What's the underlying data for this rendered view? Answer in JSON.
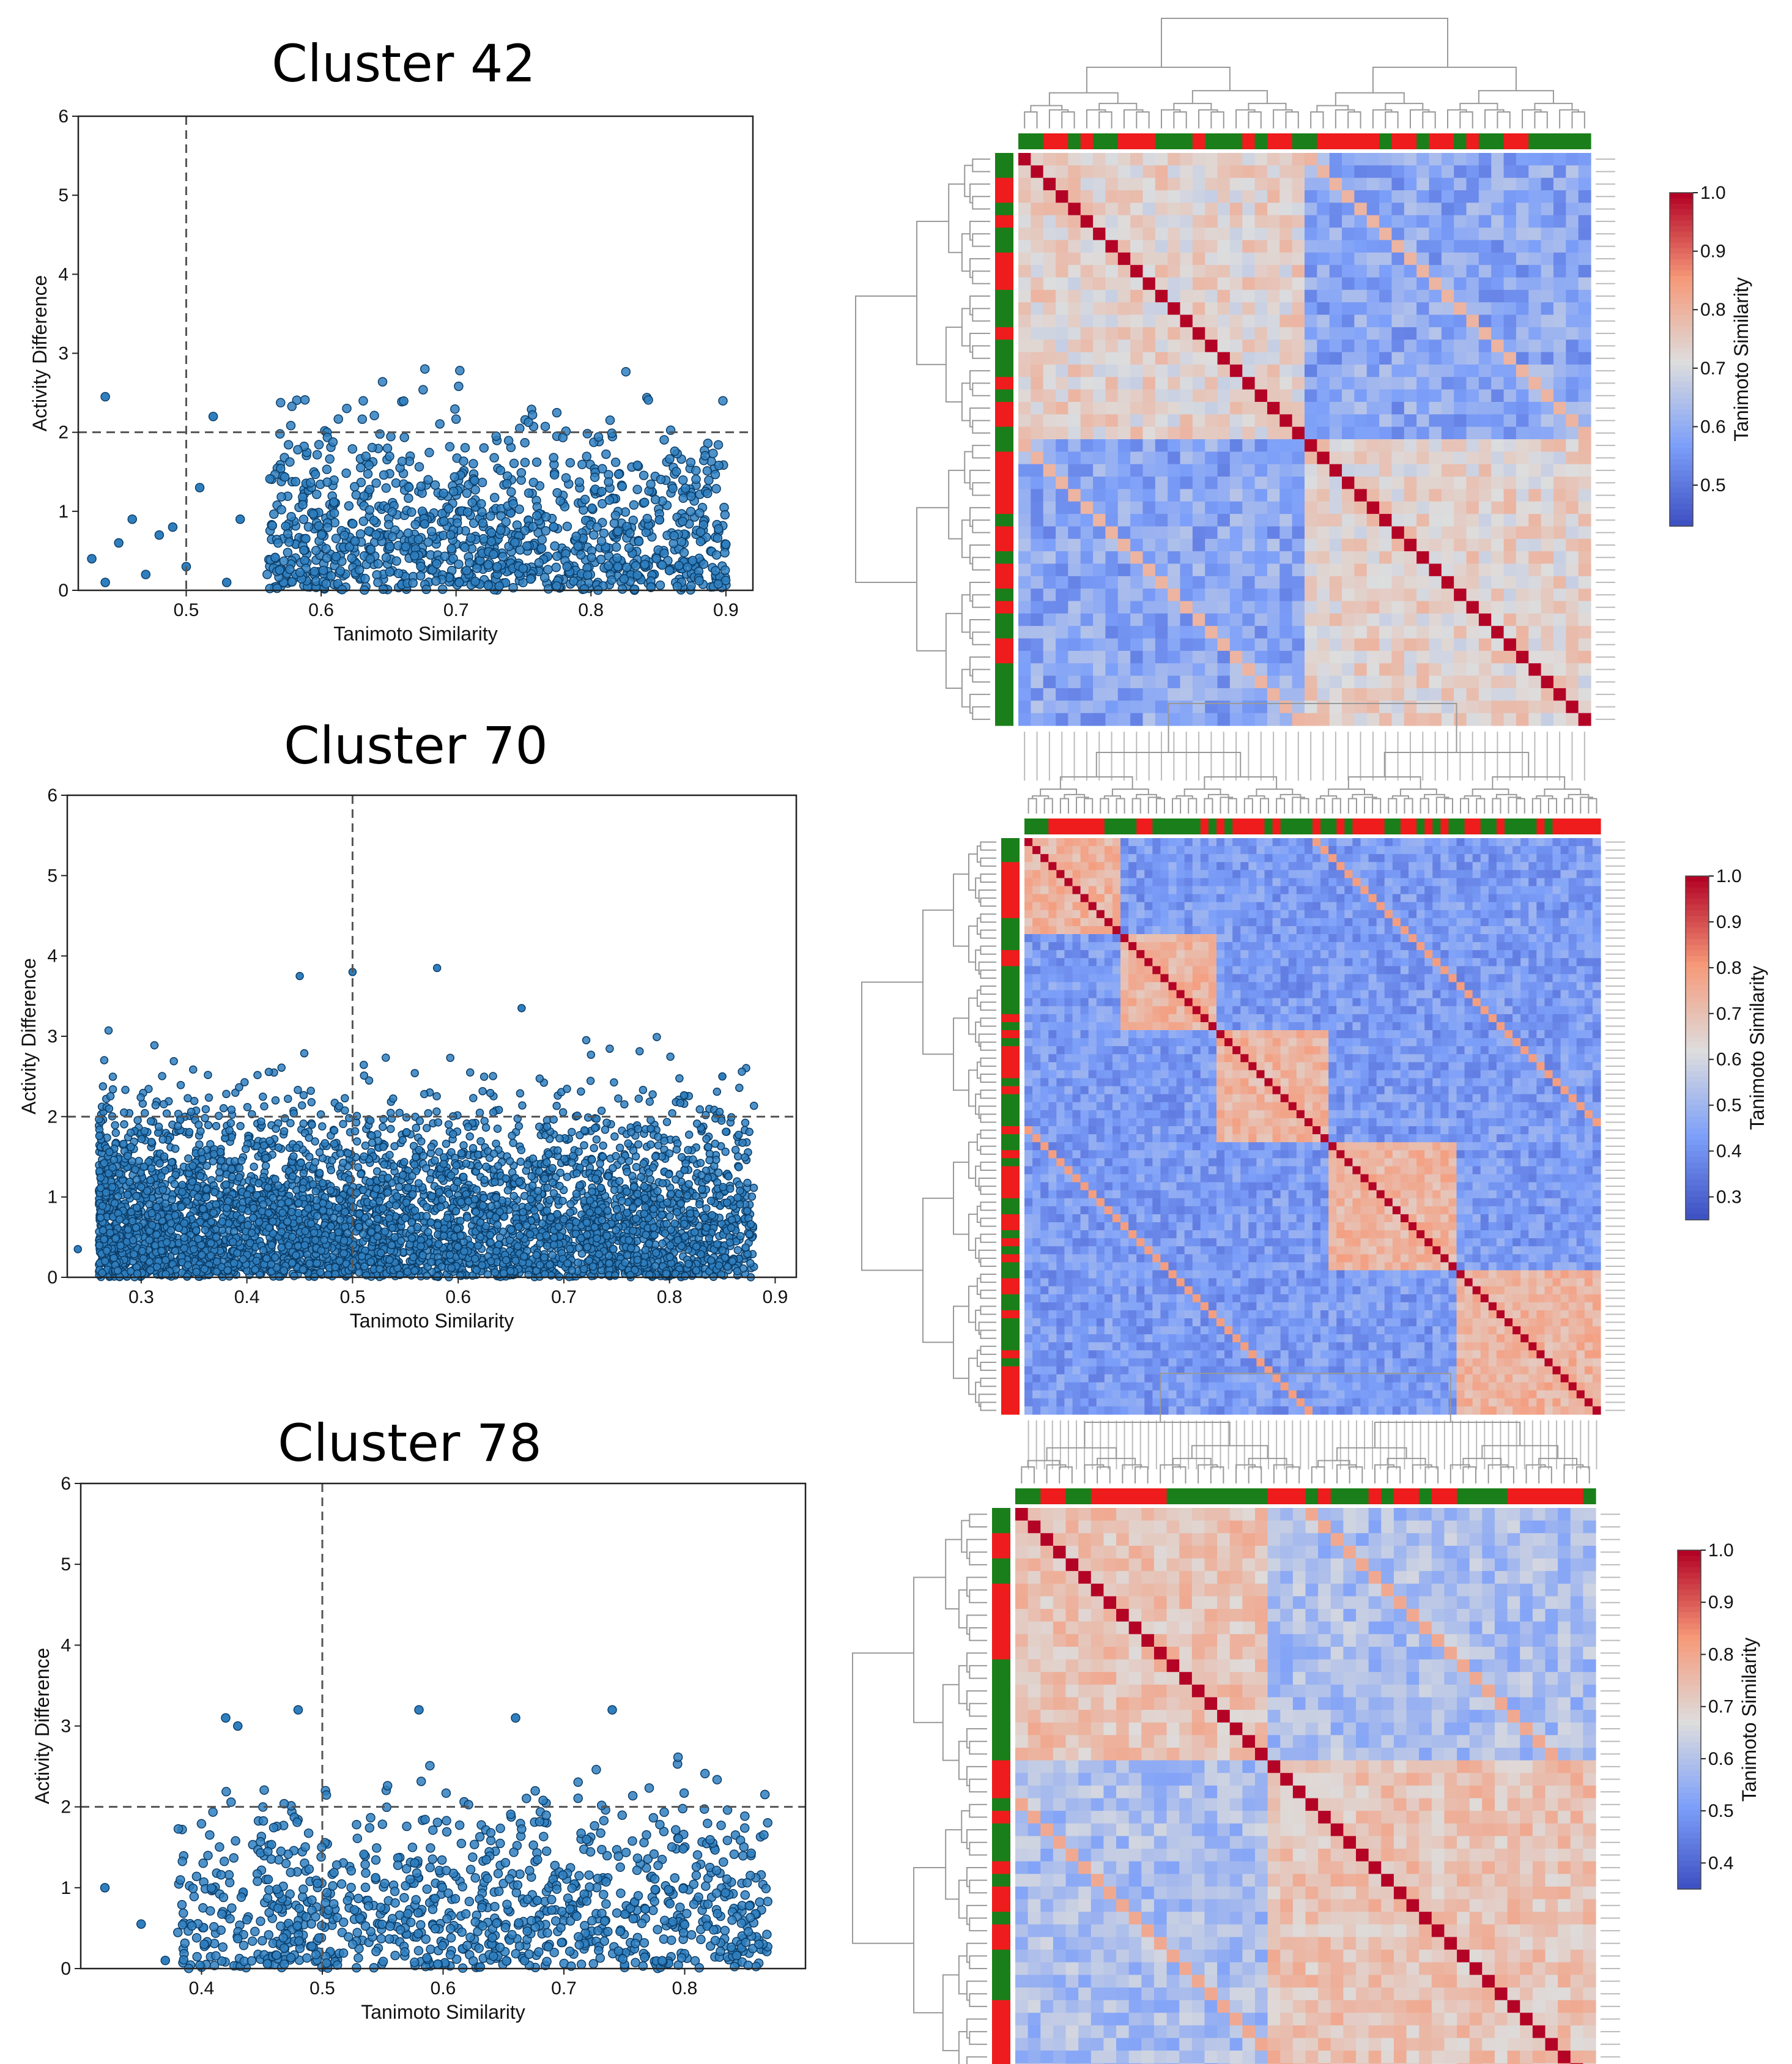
{
  "panels": [
    {
      "title": "Cluster 42",
      "scatter": {
        "xlabel": "Tanimoto Similarity",
        "ylabel": "Activity Difference",
        "xlim": [
          0.42,
          0.92
        ],
        "ylim": [
          0,
          6
        ],
        "xticks": [
          "0.5",
          "0.6",
          "0.7",
          "0.8",
          "0.9"
        ],
        "xtickValues": [
          0.5,
          0.6,
          0.7,
          0.8,
          0.9
        ],
        "yticks": [
          "0",
          "1",
          "2",
          "3",
          "4",
          "5",
          "6"
        ],
        "vline": 0.5,
        "hline": 2,
        "cloud": {
          "xmin": 0.56,
          "xmax": 0.9,
          "count": 1100,
          "extras": [
            [
              0.43,
              0.4
            ],
            [
              0.44,
              2.45
            ],
            [
              0.44,
              0.1
            ],
            [
              0.45,
              0.6
            ],
            [
              0.46,
              0.9
            ],
            [
              0.47,
              0.2
            ],
            [
              0.48,
              0.7
            ],
            [
              0.49,
              0.8
            ],
            [
              0.5,
              0.3
            ],
            [
              0.51,
              1.3
            ],
            [
              0.52,
              2.2
            ],
            [
              0.53,
              0.1
            ],
            [
              0.54,
              0.9
            ]
          ]
        }
      },
      "heatmap": {
        "n": 46,
        "blocks": [
          23,
          23
        ],
        "colorbar": {
          "label": "Tanimoto Similarity",
          "min": 0.43,
          "max": 1.0,
          "ticks": [
            "1.0",
            "0.9",
            "0.8",
            "0.7",
            "0.6",
            "0.5"
          ],
          "tickValues": [
            1.0,
            0.9,
            0.8,
            0.7,
            0.6,
            0.5
          ]
        }
      }
    },
    {
      "title": "Cluster 70",
      "scatter": {
        "xlabel": "Tanimoto Similarity",
        "ylabel": "Activity Difference",
        "xlim": [
          0.23,
          0.92
        ],
        "ylim": [
          0,
          6
        ],
        "xticks": [
          "0.3",
          "0.4",
          "0.5",
          "0.6",
          "0.7",
          "0.8",
          "0.9"
        ],
        "xtickValues": [
          0.3,
          0.4,
          0.5,
          0.6,
          0.7,
          0.8,
          0.9
        ],
        "yticks": [
          "0",
          "1",
          "2",
          "3",
          "4",
          "5",
          "6"
        ],
        "vline": 0.5,
        "hline": 2,
        "cloud": {
          "xmin": 0.26,
          "xmax": 0.88,
          "count": 4500,
          "extras": [
            [
              0.24,
              0.35
            ],
            [
              0.45,
              3.75
            ],
            [
              0.5,
              3.8
            ],
            [
              0.58,
              3.85
            ],
            [
              0.66,
              3.35
            ],
            [
              0.85,
              2.5
            ]
          ]
        }
      },
      "heatmap": {
        "n": 72,
        "blocks": [
          12,
          12,
          14,
          16,
          18
        ],
        "colorbar": {
          "label": "Tanimoto Similarity",
          "min": 0.25,
          "max": 1.0,
          "ticks": [
            "1.0",
            "0.9",
            "0.8",
            "0.7",
            "0.6",
            "0.5",
            "0.4",
            "0.3"
          ],
          "tickValues": [
            1.0,
            0.9,
            0.8,
            0.7,
            0.6,
            0.5,
            0.4,
            0.3
          ]
        }
      }
    },
    {
      "title": "Cluster 78",
      "scatter": {
        "xlabel": "Tanimoto Similarity",
        "ylabel": "Activity Difference",
        "xlim": [
          0.3,
          0.9
        ],
        "ylim": [
          0,
          6
        ],
        "xticks": [
          "0.4",
          "0.5",
          "0.6",
          "0.7",
          "0.8"
        ],
        "xtickValues": [
          0.4,
          0.5,
          0.6,
          0.7,
          0.8
        ],
        "yticks": [
          "0",
          "1",
          "2",
          "3",
          "4",
          "5",
          "6"
        ],
        "vline": 0.5,
        "hline": 2,
        "cloud": {
          "xmin": 0.38,
          "xmax": 0.87,
          "count": 1000,
          "extras": [
            [
              0.32,
              1.0
            ],
            [
              0.35,
              0.55
            ],
            [
              0.37,
              0.1
            ],
            [
              0.42,
              3.1
            ],
            [
              0.43,
              3.0
            ],
            [
              0.48,
              3.2
            ],
            [
              0.58,
              3.2
            ],
            [
              0.66,
              3.1
            ],
            [
              0.74,
              3.2
            ]
          ]
        }
      },
      "heatmap": {
        "n": 46,
        "blocks": [
          20,
          26
        ],
        "colorbar": {
          "label": "Tanimoto Similarity",
          "min": 0.35,
          "max": 1.0,
          "ticks": [
            "1.0",
            "0.9",
            "0.8",
            "0.7",
            "0.6",
            "0.5",
            "0.4"
          ],
          "tickValues": [
            1.0,
            0.9,
            0.8,
            0.7,
            0.6,
            0.5,
            0.4
          ]
        }
      }
    }
  ]
}
